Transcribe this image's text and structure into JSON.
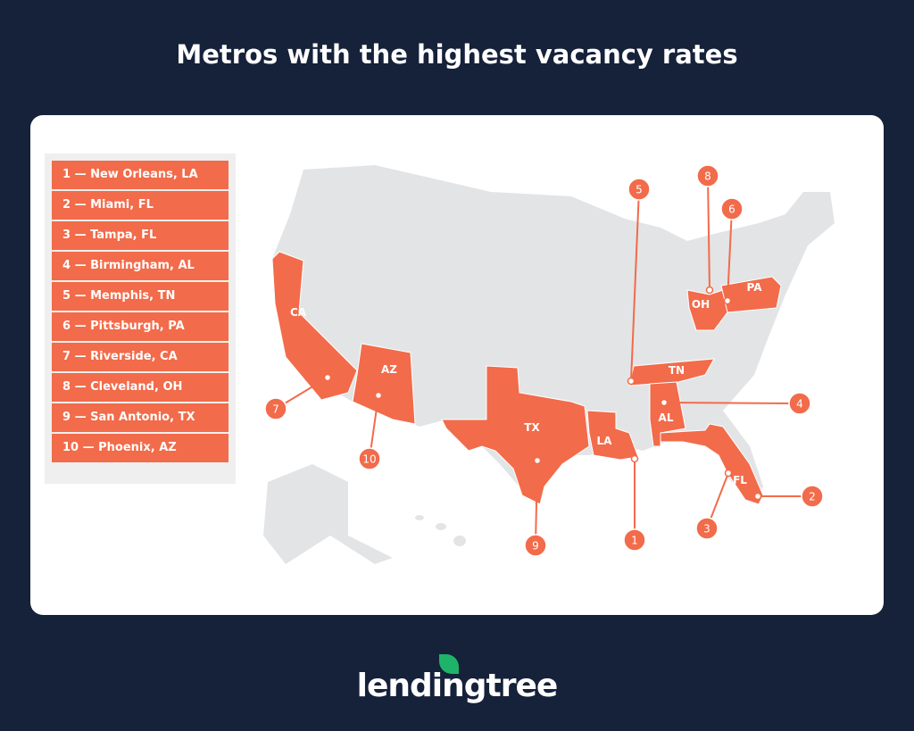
{
  "title": "Metros with the highest vacancy rates",
  "colors": {
    "background": "#16213a",
    "highlight": "#f26b4a",
    "base_map": "#e3e4e6"
  },
  "legend": [
    "1 — New Orleans, LA",
    "2 — Miami, FL",
    "3 — Tampa, FL",
    "4 — Birmingham, AL",
    "5 — Memphis, TN",
    "6 — Pittsburgh, PA",
    "7 — Riverside, CA",
    "8 — Cleveland, OH",
    "9 — San Antonio, TX",
    "10 — Phoenix, AZ"
  ],
  "highlighted_states": [
    "CA",
    "AZ",
    "TX",
    "LA",
    "TN",
    "AL",
    "FL",
    "OH",
    "PA"
  ],
  "markers": [
    {
      "rank": "1",
      "metro": "New Orleans",
      "state": "LA"
    },
    {
      "rank": "2",
      "metro": "Miami",
      "state": "FL"
    },
    {
      "rank": "3",
      "metro": "Tampa",
      "state": "FL"
    },
    {
      "rank": "4",
      "metro": "Birmingham",
      "state": "AL"
    },
    {
      "rank": "5",
      "metro": "Memphis",
      "state": "TN"
    },
    {
      "rank": "6",
      "metro": "Pittsburgh",
      "state": "PA"
    },
    {
      "rank": "7",
      "metro": "Riverside",
      "state": "CA"
    },
    {
      "rank": "8",
      "metro": "Cleveland",
      "state": "OH"
    },
    {
      "rank": "9",
      "metro": "San Antonio",
      "state": "TX"
    },
    {
      "rank": "10",
      "metro": "Phoenix",
      "state": "AZ"
    }
  ],
  "brand": "lendingtree"
}
